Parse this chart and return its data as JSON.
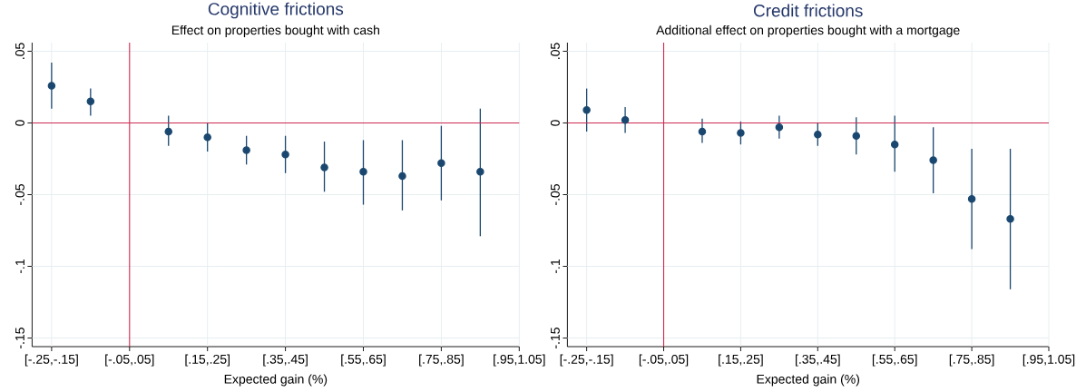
{
  "chart_data": [
    {
      "type": "scatter",
      "title": "Cognitive frictions",
      "subtitle": "Effect on properties bought with cash",
      "xlabel": "Expected gain (%)",
      "categories": [
        "[-.25,-.15]",
        null,
        "[-.05,.05]",
        null,
        "[.15,.25]",
        null,
        "[.35,.45]",
        null,
        "[.55,.65]",
        null,
        "[.75,.85]",
        null,
        "[.95,1.05]"
      ],
      "values": [
        0.026,
        0.015,
        null,
        -0.006,
        -0.01,
        -0.019,
        -0.022,
        -0.031,
        -0.034,
        -0.037,
        -0.028,
        -0.034,
        null
      ],
      "errors": [
        [
          0.01,
          0.042
        ],
        [
          0.005,
          0.024
        ],
        null,
        [
          -0.016,
          0.005
        ],
        [
          -0.02,
          0.0
        ],
        [
          -0.029,
          -0.009
        ],
        [
          -0.035,
          -0.009
        ],
        [
          -0.048,
          -0.013
        ],
        [
          -0.057,
          -0.012
        ],
        [
          -0.061,
          -0.012
        ],
        [
          -0.054,
          -0.002
        ],
        [
          -0.079,
          0.01
        ],
        null
      ],
      "color": "#1a476f",
      "marker": "circle",
      "grid": true,
      "ylim": [
        -0.156,
        0.056
      ],
      "yticks": [
        {
          "value": -0.15,
          "label": "-.15"
        },
        {
          "value": -0.1,
          "label": "-.1"
        },
        {
          "value": -0.05,
          "label": "-.05"
        },
        0,
        {
          "value": 0.05,
          "label": ".05"
        }
      ],
      "ref_lines": [
        {
          "axis": "x",
          "value": "[-.05,.05]",
          "color": "#d2264b"
        },
        {
          "axis": "y",
          "value": 0,
          "color": "#cc2a52"
        }
      ]
    },
    {
      "type": "scatter",
      "title": "Credit frictions",
      "subtitle": "Additional effect on properties bought with a mortgage",
      "xlabel": "Expected gain (%)",
      "categories": [
        "[-.25,-.15]",
        null,
        "[-.05,.05]",
        null,
        "[.15,.25]",
        null,
        "[.35,.45]",
        null,
        "[.55,.65]",
        null,
        "[.75,.85]",
        null,
        "[.95,1.05]"
      ],
      "values": [
        0.009,
        0.002,
        null,
        -0.006,
        -0.007,
        -0.003,
        -0.008,
        -0.009,
        -0.015,
        -0.026,
        -0.053,
        -0.067,
        null
      ],
      "errors": [
        [
          -0.006,
          0.024
        ],
        [
          -0.007,
          0.011
        ],
        null,
        [
          -0.014,
          0.003
        ],
        [
          -0.015,
          0.001
        ],
        [
          -0.011,
          0.005
        ],
        [
          -0.016,
          0.0
        ],
        [
          -0.022,
          0.004
        ],
        [
          -0.034,
          0.005
        ],
        [
          -0.049,
          -0.003
        ],
        [
          -0.088,
          -0.018
        ],
        [
          -0.116,
          -0.018
        ],
        null
      ],
      "color": "#1a476f",
      "marker": "circle",
      "grid": true,
      "ylim": [
        -0.156,
        0.056
      ],
      "yticks": [
        {
          "value": -0.15,
          "label": "-.15"
        },
        {
          "value": -0.1,
          "label": "-.1"
        },
        {
          "value": -0.05,
          "label": "-.05"
        },
        0,
        {
          "value": 0.05,
          "label": ".05"
        }
      ],
      "ref_lines": [
        {
          "axis": "x",
          "value": "[-.05,.05]",
          "color": "#d2264b"
        },
        {
          "axis": "y",
          "value": 0,
          "color": "#cc2a52"
        }
      ]
    }
  ]
}
